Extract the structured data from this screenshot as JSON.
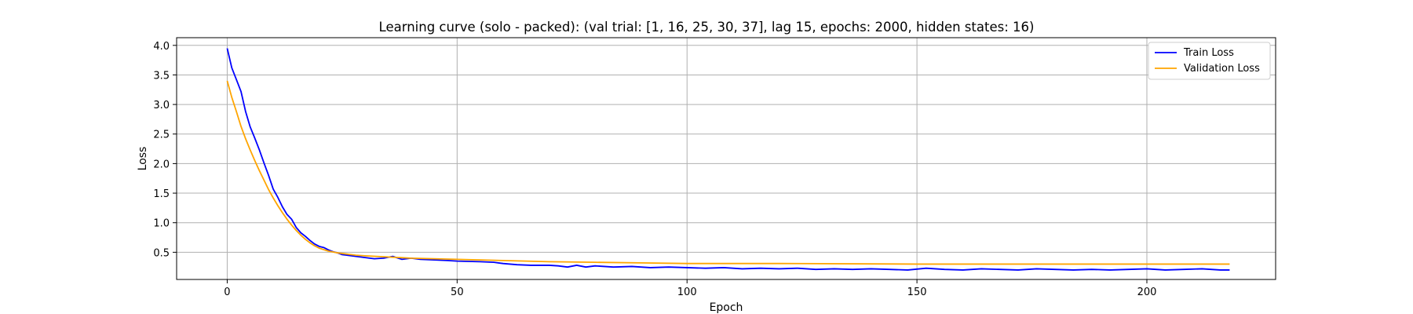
{
  "chart_data": {
    "type": "line",
    "title": "Learning curve (solo - packed): (val trial: [1, 16, 25, 30, 37], lag 15, epochs: 2000, hidden states: 16)",
    "xlabel": "Epoch",
    "ylabel": "Loss",
    "xlim": [
      -11,
      228
    ],
    "ylim": [
      0.04,
      4.13
    ],
    "x_ticks": [
      0,
      50,
      100,
      150,
      200
    ],
    "y_ticks": [
      0.5,
      1.0,
      1.5,
      2.0,
      2.5,
      3.0,
      3.5,
      4.0
    ],
    "x_tick_labels": [
      "0",
      "50",
      "100",
      "150",
      "200"
    ],
    "y_tick_labels": [
      "0.5",
      "1.0",
      "1.5",
      "2.0",
      "2.5",
      "3.0",
      "3.5",
      "4.0"
    ],
    "grid": true,
    "legend_position": "top-right",
    "series": [
      {
        "name": "Train Loss",
        "color": "#0000ff",
        "points": [
          [
            0,
            3.95
          ],
          [
            1,
            3.62
          ],
          [
            2,
            3.42
          ],
          [
            3,
            3.22
          ],
          [
            4,
            2.88
          ],
          [
            5,
            2.62
          ],
          [
            6,
            2.43
          ],
          [
            7,
            2.23
          ],
          [
            8,
            2.01
          ],
          [
            9,
            1.8
          ],
          [
            10,
            1.57
          ],
          [
            11,
            1.43
          ],
          [
            12,
            1.27
          ],
          [
            13,
            1.14
          ],
          [
            14,
            1.06
          ],
          [
            15,
            0.92
          ],
          [
            16,
            0.83
          ],
          [
            17,
            0.77
          ],
          [
            18,
            0.7
          ],
          [
            19,
            0.64
          ],
          [
            20,
            0.6
          ],
          [
            21,
            0.58
          ],
          [
            22,
            0.54
          ],
          [
            23,
            0.51
          ],
          [
            24,
            0.49
          ],
          [
            25,
            0.46
          ],
          [
            27,
            0.44
          ],
          [
            30,
            0.41
          ],
          [
            32,
            0.39
          ],
          [
            34,
            0.4
          ],
          [
            36,
            0.43
          ],
          [
            38,
            0.38
          ],
          [
            40,
            0.4
          ],
          [
            42,
            0.38
          ],
          [
            45,
            0.37
          ],
          [
            48,
            0.36
          ],
          [
            50,
            0.35
          ],
          [
            55,
            0.34
          ],
          [
            58,
            0.33
          ],
          [
            60,
            0.31
          ],
          [
            63,
            0.29
          ],
          [
            66,
            0.28
          ],
          [
            70,
            0.28
          ],
          [
            72,
            0.27
          ],
          [
            74,
            0.25
          ],
          [
            76,
            0.28
          ],
          [
            78,
            0.25
          ],
          [
            80,
            0.27
          ],
          [
            84,
            0.25
          ],
          [
            88,
            0.26
          ],
          [
            92,
            0.24
          ],
          [
            96,
            0.25
          ],
          [
            100,
            0.24
          ],
          [
            104,
            0.23
          ],
          [
            108,
            0.24
          ],
          [
            112,
            0.22
          ],
          [
            116,
            0.23
          ],
          [
            120,
            0.22
          ],
          [
            124,
            0.23
          ],
          [
            128,
            0.21
          ],
          [
            132,
            0.22
          ],
          [
            136,
            0.21
          ],
          [
            140,
            0.22
          ],
          [
            144,
            0.21
          ],
          [
            148,
            0.2
          ],
          [
            152,
            0.23
          ],
          [
            156,
            0.21
          ],
          [
            160,
            0.2
          ],
          [
            164,
            0.22
          ],
          [
            168,
            0.21
          ],
          [
            172,
            0.2
          ],
          [
            176,
            0.22
          ],
          [
            180,
            0.21
          ],
          [
            184,
            0.2
          ],
          [
            188,
            0.21
          ],
          [
            192,
            0.2
          ],
          [
            196,
            0.21
          ],
          [
            200,
            0.22
          ],
          [
            204,
            0.2
          ],
          [
            208,
            0.21
          ],
          [
            212,
            0.22
          ],
          [
            216,
            0.2
          ],
          [
            218,
            0.2
          ]
        ]
      },
      {
        "name": "Validation Loss",
        "color": "#ffa500",
        "points": [
          [
            0,
            3.4
          ],
          [
            1,
            3.12
          ],
          [
            2,
            2.88
          ],
          [
            3,
            2.63
          ],
          [
            4,
            2.42
          ],
          [
            5,
            2.23
          ],
          [
            6,
            2.05
          ],
          [
            7,
            1.88
          ],
          [
            8,
            1.72
          ],
          [
            9,
            1.56
          ],
          [
            10,
            1.42
          ],
          [
            11,
            1.29
          ],
          [
            12,
            1.17
          ],
          [
            13,
            1.06
          ],
          [
            14,
            0.96
          ],
          [
            15,
            0.87
          ],
          [
            16,
            0.79
          ],
          [
            17,
            0.72
          ],
          [
            18,
            0.66
          ],
          [
            19,
            0.61
          ],
          [
            20,
            0.57
          ],
          [
            22,
            0.52
          ],
          [
            24,
            0.49
          ],
          [
            26,
            0.47
          ],
          [
            28,
            0.45
          ],
          [
            30,
            0.44
          ],
          [
            35,
            0.42
          ],
          [
            40,
            0.4
          ],
          [
            45,
            0.39
          ],
          [
            50,
            0.38
          ],
          [
            60,
            0.36
          ],
          [
            70,
            0.34
          ],
          [
            80,
            0.33
          ],
          [
            90,
            0.32
          ],
          [
            100,
            0.31
          ],
          [
            120,
            0.31
          ],
          [
            150,
            0.3
          ],
          [
            180,
            0.3
          ],
          [
            200,
            0.3
          ],
          [
            218,
            0.3
          ]
        ]
      }
    ]
  }
}
